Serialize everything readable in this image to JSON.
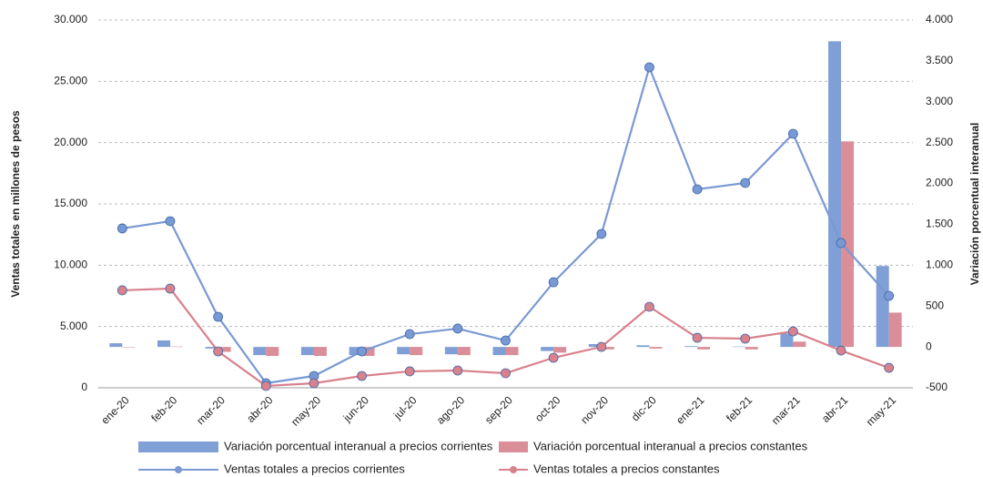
{
  "chart_data": {
    "type": "combo",
    "y_label": "Ventas totales en millones de pesos",
    "y2_label": "Variación porcentual interanual",
    "categories": [
      "ene-20",
      "feb-20",
      "mar-20",
      "abr-20",
      "may-20",
      "jun-20",
      "jul-20",
      "ago-20",
      "sep-20",
      "oct-20",
      "nov-20",
      "dic-20",
      "ene-21",
      "feb-21",
      "mar-21",
      "abr-21",
      "may-21"
    ],
    "ylim": [
      0,
      30000
    ],
    "yticks": [
      0,
      {
        "value": 5000,
        "label": "5.000"
      },
      {
        "value": 10000,
        "label": "10.000"
      },
      {
        "value": 15000,
        "label": "15.000"
      },
      {
        "value": 20000,
        "label": "20.000"
      },
      {
        "value": 25000,
        "label": "25.000"
      },
      {
        "value": 30000,
        "label": "30.000"
      }
    ],
    "y2lim": [
      -500,
      4000
    ],
    "y2ticks": [
      -500,
      0,
      500,
      {
        "value": 1000,
        "label": "1.000"
      },
      {
        "value": 1500,
        "label": "1.500"
      },
      {
        "value": 2000,
        "label": "2.000"
      },
      {
        "value": 2500,
        "label": "2.500"
      },
      {
        "value": 3000,
        "label": "3.000"
      },
      {
        "value": 3500,
        "label": "3.500"
      },
      {
        "value": 4000,
        "label": "4.000"
      }
    ],
    "grid": true,
    "series": [
      {
        "name": "Variación porcentual interanual a precios corrientes",
        "type": "bar",
        "axis": "y2",
        "color": "#7f9fd6",
        "values": [
          45,
          80,
          -20,
          -100,
          -100,
          -100,
          -90,
          -90,
          -100,
          -50,
          35,
          20,
          10,
          5,
          165,
          3740,
          990
        ]
      },
      {
        "name": "Variación porcentual interanual a precios constantes",
        "type": "bar",
        "axis": "y2",
        "color": "#d98e98",
        "values": [
          -5,
          5,
          -60,
          -110,
          -110,
          -110,
          -100,
          -100,
          -100,
          -70,
          -30,
          -20,
          -30,
          -30,
          65,
          2515,
          420
        ]
      },
      {
        "name": "Ventas totales a precios corrientes",
        "type": "line",
        "color": "#7a99d4",
        "values": [
          13000,
          13590,
          5790,
          370,
          965,
          2970,
          4380,
          4830,
          3860,
          8610,
          12550,
          26140,
          16190,
          16710,
          20720,
          11810,
          7500
        ]
      },
      {
        "name": "Ventas totales a precios constantes",
        "type": "line",
        "color": "#d9818d",
        "values": [
          7950,
          8090,
          2970,
          150,
          370,
          965,
          1340,
          1410,
          1190,
          2450,
          3340,
          6610,
          4080,
          4010,
          4600,
          3040,
          1630
        ]
      }
    ]
  }
}
